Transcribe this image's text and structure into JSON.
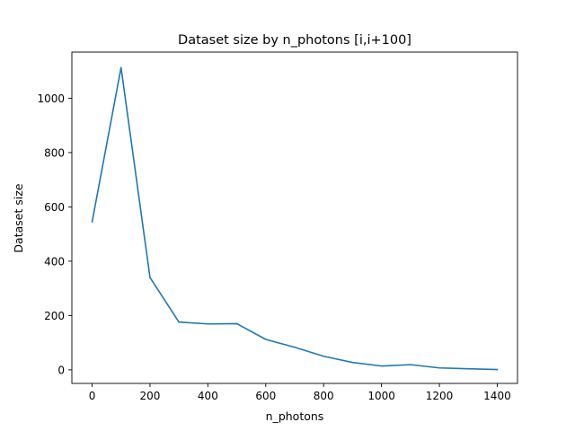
{
  "chart_data": {
    "type": "line",
    "title": "Dataset size by n_photons [i,i+100]",
    "xlabel": "n_photons",
    "ylabel": "Dataset size",
    "xlim": [
      -70,
      1470
    ],
    "ylim": [
      -50,
      1170
    ],
    "xticks": [
      0,
      200,
      400,
      600,
      800,
      1000,
      1200,
      1400
    ],
    "yticks": [
      0,
      200,
      400,
      600,
      800,
      1000
    ],
    "grid": false,
    "legend": "none",
    "series": [
      {
        "color": "#1f77b4",
        "x": [
          0,
          100,
          200,
          300,
          400,
          500,
          600,
          700,
          800,
          900,
          1000,
          1100,
          1200,
          1300,
          1400
        ],
        "y": [
          545,
          1113,
          340,
          176,
          169,
          170,
          112,
          83,
          50,
          27,
          14,
          19,
          7,
          4,
          1
        ]
      }
    ]
  }
}
